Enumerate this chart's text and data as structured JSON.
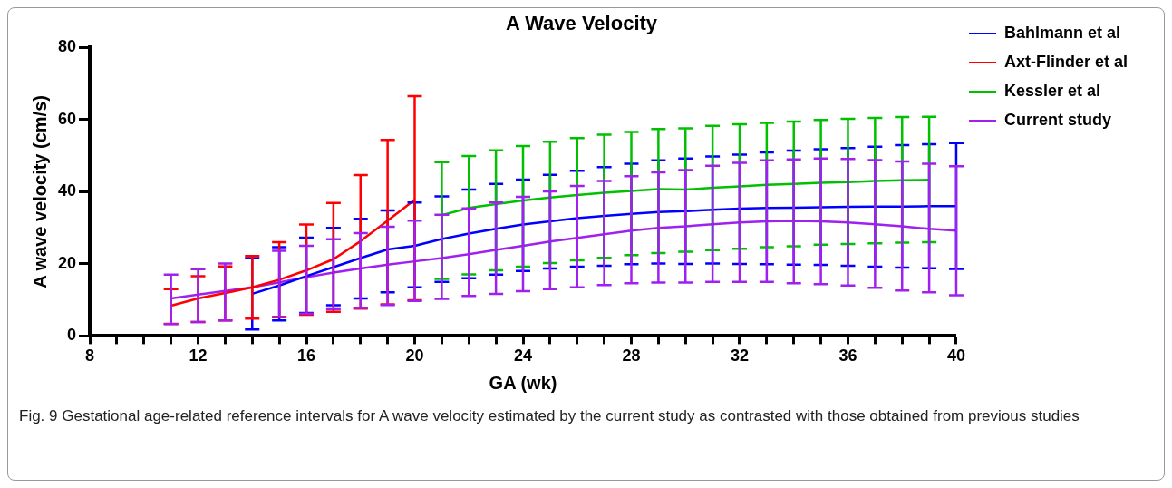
{
  "chart_data": {
    "type": "line",
    "title": "A Wave Velocity",
    "xlabel": "GA (wk)",
    "ylabel": "A wave velocity (cm/s)",
    "xlim": [
      8,
      40
    ],
    "ylim": [
      0,
      80
    ],
    "xticks": [
      8,
      {
        "value": 9,
        "label": null
      },
      {
        "value": 10,
        "label": null
      },
      {
        "value": 11,
        "label": null
      },
      12,
      {
        "value": 13,
        "label": null
      },
      {
        "value": 14,
        "label": null
      },
      {
        "value": 15,
        "label": null
      },
      16,
      {
        "value": 17,
        "label": null
      },
      {
        "value": 18,
        "label": null
      },
      {
        "value": 19,
        "label": null
      },
      20,
      {
        "value": 21,
        "label": null
      },
      {
        "value": 22,
        "label": null
      },
      {
        "value": 23,
        "label": null
      },
      24,
      {
        "value": 25,
        "label": null
      },
      {
        "value": 26,
        "label": null
      },
      {
        "value": 27,
        "label": null
      },
      28,
      {
        "value": 29,
        "label": null
      },
      {
        "value": 30,
        "label": null
      },
      {
        "value": 31,
        "label": null
      },
      32,
      {
        "value": 33,
        "label": null
      },
      {
        "value": 34,
        "label": null
      },
      {
        "value": 35,
        "label": null
      },
      36,
      {
        "value": 37,
        "label": null
      },
      {
        "value": 38,
        "label": null
      },
      {
        "value": 39,
        "label": null
      },
      40
    ],
    "yticks": [
      0,
      20,
      40,
      60,
      80
    ],
    "legend": "top right",
    "marker": "none",
    "line_style": "solid",
    "annotations": [
      "Fig. 9 Gestational age-related reference intervals for A wave velocity estimated by the current study as contrasted with those obtained from previous studies"
    ],
    "series": [
      {
        "name": "Bahlmann et al",
        "color": "#0000ff",
        "x": [
          14,
          15,
          16,
          17,
          18,
          19,
          20,
          21,
          22,
          23,
          24,
          25,
          26,
          27,
          28,
          29,
          30,
          31,
          32,
          33,
          34,
          35,
          36,
          37,
          38,
          39,
          40
        ],
        "values": [
          11.7,
          14,
          16.6,
          19.1,
          21.6,
          24,
          25,
          26.9,
          28.4,
          29.7,
          30.9,
          31.8,
          32.7,
          33.3,
          33.9,
          34.4,
          34.6,
          35,
          35.3,
          35.5,
          35.6,
          35.7,
          35.8,
          35.9,
          35.9,
          36,
          36
        ],
        "errors": [
          [
            1.8,
            21.6
          ],
          [
            4.3,
            24.6
          ],
          [
            6.4,
            27.3
          ],
          [
            8.5,
            30
          ],
          [
            10.4,
            32.5
          ],
          [
            12.1,
            34.8
          ],
          [
            13.5,
            37
          ],
          [
            15,
            38.7
          ],
          [
            16,
            40.6
          ],
          [
            17,
            42.2
          ],
          [
            18,
            43.4
          ],
          [
            18.7,
            44.7
          ],
          [
            19.2,
            45.8
          ],
          [
            19.5,
            46.8
          ],
          [
            19.9,
            47.8
          ],
          [
            20.1,
            48.7
          ],
          [
            20,
            49.2
          ],
          [
            20.1,
            49.8
          ],
          [
            20,
            50.3
          ],
          [
            19.9,
            50.9
          ],
          [
            19.8,
            51.4
          ],
          [
            19.7,
            51.8
          ],
          [
            19.5,
            52.1
          ],
          [
            19.2,
            52.5
          ],
          [
            19,
            52.9
          ],
          [
            18.8,
            53.2
          ],
          [
            18.6,
            53.5
          ]
        ]
      },
      {
        "name": "Axt-Flinder et al",
        "color": "#ff0000",
        "x": [
          11,
          12,
          13,
          14,
          15,
          16,
          17,
          18,
          19,
          20
        ],
        "values": [
          8.4,
          10.4,
          11.9,
          13.5,
          15.6,
          18.2,
          21.3,
          26.3,
          32,
          37.8
        ],
        "errors": [
          [
            3.4,
            13
          ],
          [
            3.9,
            16.6
          ],
          [
            4.3,
            19.3
          ],
          [
            4.8,
            22.2
          ],
          [
            5.2,
            26
          ],
          [
            5.9,
            30.9
          ],
          [
            6.7,
            36.9
          ],
          [
            7.6,
            44.6
          ],
          [
            8.8,
            54.4
          ],
          [
            9.9,
            66.5
          ]
        ]
      },
      {
        "name": "Kessler et al",
        "color": "#00c000",
        "x": [
          21,
          22,
          23,
          24,
          25,
          26,
          27,
          28,
          29,
          30,
          31,
          32,
          33,
          34,
          35,
          36,
          37,
          38,
          39
        ],
        "values": [
          33.5,
          35.5,
          36.6,
          37.6,
          38.4,
          39.1,
          39.7,
          40.2,
          40.7,
          40.6,
          41.1,
          41.5,
          41.9,
          42.2,
          42.5,
          42.7,
          43,
          43.2,
          43.3
        ],
        "errors": [
          [
            15.8,
            48.2
          ],
          [
            17.1,
            49.9
          ],
          [
            18.2,
            51.5
          ],
          [
            19.2,
            52.7
          ],
          [
            20.2,
            53.9
          ],
          [
            21,
            54.9
          ],
          [
            21.7,
            55.8
          ],
          [
            22.4,
            56.6
          ],
          [
            23,
            57.4
          ],
          [
            23.4,
            57.6
          ],
          [
            23.8,
            58.3
          ],
          [
            24.2,
            58.7
          ],
          [
            24.6,
            59.1
          ],
          [
            24.9,
            59.5
          ],
          [
            25.3,
            59.9
          ],
          [
            25.5,
            60.2
          ],
          [
            25.7,
            60.5
          ],
          [
            25.9,
            60.7
          ],
          [
            26,
            60.8
          ]
        ]
      },
      {
        "name": "Current study",
        "color": "#a020f0",
        "x": [
          11,
          12,
          13,
          14,
          15,
          16,
          17,
          18,
          19,
          20,
          21,
          22,
          23,
          24,
          25,
          26,
          27,
          28,
          29,
          30,
          31,
          32,
          33,
          34,
          35,
          36,
          37,
          38,
          39,
          40
        ],
        "values": [
          10.4,
          11.5,
          12.5,
          13.5,
          14.9,
          16.3,
          17.6,
          18.7,
          19.8,
          20.7,
          21.6,
          22.7,
          23.9,
          25,
          26.2,
          27.2,
          28.2,
          29.2,
          30,
          30.4,
          31,
          31.5,
          31.8,
          31.9,
          31.8,
          31.5,
          31,
          30.4,
          29.7,
          29.2
        ],
        "errors": [
          [
            3.3,
            17
          ],
          [
            3.9,
            18.5
          ],
          [
            4.3,
            20.1
          ],
          null,
          [
            5.3,
            23.6
          ],
          [
            6.2,
            25
          ],
          [
            7.4,
            26.8
          ],
          [
            7.8,
            28.5
          ],
          [
            8.6,
            30.3
          ],
          [
            9.7,
            32
          ],
          [
            10.3,
            33.6
          ],
          [
            11.1,
            35.4
          ],
          [
            11.7,
            37
          ],
          [
            12.4,
            38.6
          ],
          [
            13,
            40.1
          ],
          [
            13.5,
            41.6
          ],
          [
            14.1,
            43
          ],
          [
            14.6,
            44.3
          ],
          [
            14.8,
            45.4
          ],
          [
            14.8,
            46
          ],
          [
            15,
            47.2
          ],
          [
            15,
            48
          ],
          [
            15,
            48.7
          ],
          [
            14.6,
            49
          ],
          [
            14.4,
            49.2
          ],
          [
            14,
            49.1
          ],
          [
            13.4,
            48.8
          ],
          [
            12.6,
            48.4
          ],
          [
            12.1,
            47.8
          ],
          [
            11.3,
            47.1
          ]
        ]
      }
    ]
  }
}
